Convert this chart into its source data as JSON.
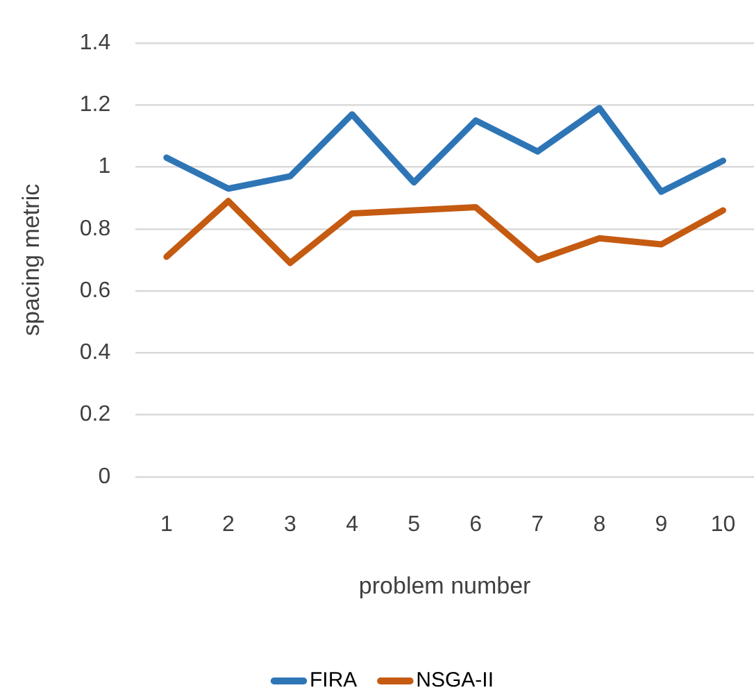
{
  "chart_data": {
    "type": "line",
    "categories": [
      "1",
      "2",
      "3",
      "4",
      "5",
      "6",
      "7",
      "8",
      "9",
      "10"
    ],
    "series": [
      {
        "name": "FIRA",
        "color": "#2e75b6",
        "values": [
          1.03,
          0.93,
          0.97,
          1.17,
          0.95,
          1.15,
          1.05,
          1.19,
          0.92,
          1.02
        ]
      },
      {
        "name": "NSGA-II",
        "color": "#c55a11",
        "values": [
          0.71,
          0.89,
          0.69,
          0.85,
          0.86,
          0.87,
          0.7,
          0.77,
          0.75,
          0.86
        ]
      }
    ],
    "xlabel": "problem number",
    "ylabel": "spacing metric",
    "ylim": [
      0,
      1.4
    ],
    "yticks": [
      0,
      0.2,
      0.4,
      0.6,
      0.8,
      1,
      1.2,
      1.4
    ],
    "grid": "y",
    "legend": "bottom",
    "marker": "none"
  }
}
